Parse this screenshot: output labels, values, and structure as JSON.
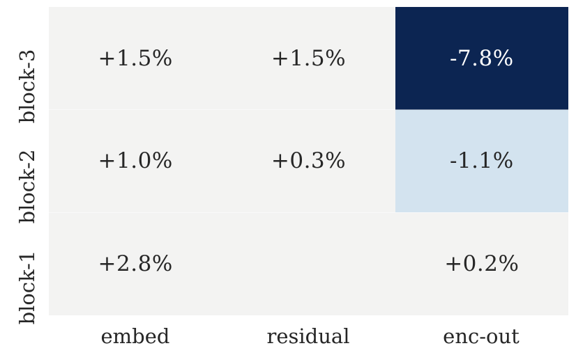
{
  "figure": {
    "background": "#ffffff"
  },
  "chart_data": {
    "type": "heatmap",
    "title": "",
    "xlabel": "",
    "ylabel": "",
    "legend": "none",
    "grid": "off",
    "columns": [
      "embed",
      "residual",
      "enc-out"
    ],
    "rows_top_to_bottom": [
      "block-3",
      "block-2",
      "block-1"
    ],
    "colors": {
      "default_cell_bg": "#f3f3f2",
      "dark_cell_bg": "#0c2552",
      "light_blue_cell_bg": "#d3e3ef",
      "text_on_light": "#262626",
      "text_on_dark": "#ffffff",
      "tick_label_color": "#262626"
    },
    "cells": [
      [
        {
          "label": "+1.5%",
          "value": 1.5,
          "bg": "#f3f3f2",
          "fg": "#262626"
        },
        {
          "label": "+1.5%",
          "value": 1.5,
          "bg": "#f3f3f2",
          "fg": "#262626"
        },
        {
          "label": "-7.8%",
          "value": -7.8,
          "bg": "#0c2552",
          "fg": "#ffffff"
        }
      ],
      [
        {
          "label": "+1.0%",
          "value": 1.0,
          "bg": "#f3f3f2",
          "fg": "#262626"
        },
        {
          "label": "+0.3%",
          "value": 0.3,
          "bg": "#f3f3f2",
          "fg": "#262626"
        },
        {
          "label": "-1.1%",
          "value": -1.1,
          "bg": "#d3e3ef",
          "fg": "#262626"
        }
      ],
      [
        {
          "label": "+2.8%",
          "value": 2.8,
          "bg": "#f3f3f2",
          "fg": "#262626"
        },
        {
          "label": "",
          "value": null,
          "bg": "#f3f3f2",
          "fg": "#262626"
        },
        {
          "label": "+0.2%",
          "value": 0.2,
          "bg": "#f3f3f2",
          "fg": "#262626"
        }
      ]
    ]
  }
}
